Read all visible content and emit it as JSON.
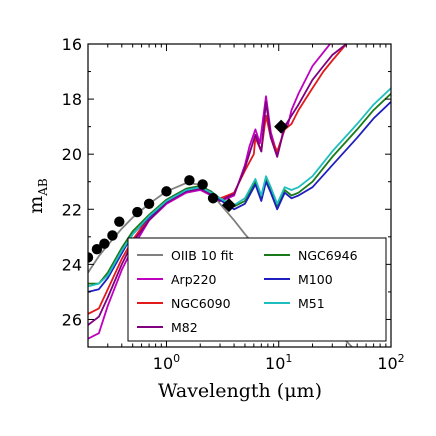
{
  "chart_data": {
    "type": "line",
    "xlabel": "Wavelength (μm)",
    "ylabel_main": "m",
    "ylabel_sub": "AB",
    "x_scale": "log",
    "xlim": [
      0.2,
      100
    ],
    "ylim": [
      27,
      16
    ],
    "y_inverted": true,
    "grid": false,
    "legend_placement": "lower-right",
    "x_ticks": [
      {
        "value": 1,
        "base": "10",
        "exp": "0"
      },
      {
        "value": 10,
        "base": "10",
        "exp": "1"
      },
      {
        "value": 100,
        "base": "10",
        "exp": "2"
      }
    ],
    "y_ticks": [
      16,
      18,
      20,
      22,
      24,
      26
    ],
    "colors": {
      "OIIB 10 fit": "#808080",
      "Arp220": "#bf00bf",
      "NGC6090": "#e31a1c",
      "M82": "#800080",
      "NGC6946": "#1a7a1a",
      "M100": "#1f1fbf",
      "M51": "#1fbfbf",
      "points": "#000000"
    },
    "legend_order": [
      "OIIB 10 fit",
      "NGC6946",
      "Arp220",
      "M100",
      "NGC6090",
      "M51",
      "M82"
    ],
    "series": [
      {
        "name": "OIIB 10 fit",
        "points": [
          [
            0.2,
            24.3
          ],
          [
            0.25,
            23.7
          ],
          [
            0.3,
            23.3
          ],
          [
            0.4,
            22.7
          ],
          [
            0.5,
            22.3
          ],
          [
            0.7,
            21.8
          ],
          [
            1.0,
            21.35
          ],
          [
            1.5,
            21.05
          ],
          [
            2.0,
            21.1
          ],
          [
            2.5,
            21.4
          ],
          [
            3.0,
            21.8
          ],
          [
            4.0,
            22.4
          ],
          [
            5.0,
            22.9
          ],
          [
            7.0,
            23.6
          ],
          [
            10,
            24.3
          ],
          [
            15,
            25.0
          ],
          [
            20,
            25.6
          ],
          [
            30,
            26.3
          ],
          [
            45,
            27.0
          ]
        ]
      },
      {
        "name": "Arp220",
        "points": [
          [
            0.2,
            26.7
          ],
          [
            0.25,
            26.5
          ],
          [
            0.3,
            25.5
          ],
          [
            0.4,
            24.2
          ],
          [
            0.5,
            23.4
          ],
          [
            0.7,
            22.4
          ],
          [
            1.0,
            21.8
          ],
          [
            1.5,
            21.4
          ],
          [
            2.0,
            21.3
          ],
          [
            2.5,
            21.5
          ],
          [
            3.0,
            21.7
          ],
          [
            3.5,
            21.6
          ],
          [
            4.0,
            21.5
          ],
          [
            5.0,
            20.4
          ],
          [
            5.5,
            19.7
          ],
          [
            6.2,
            19.1
          ],
          [
            6.8,
            19.6
          ],
          [
            7.7,
            17.9
          ],
          [
            8.5,
            19.2
          ],
          [
            9.7,
            20.0
          ],
          [
            10.5,
            19.5
          ],
          [
            11.3,
            18.9
          ],
          [
            12,
            19.0
          ],
          [
            13,
            18.4
          ],
          [
            15,
            17.8
          ],
          [
            20,
            16.8
          ],
          [
            25,
            16.3
          ],
          [
            30,
            15.9
          ]
        ]
      },
      {
        "name": "NGC6090",
        "points": [
          [
            0.2,
            25.8
          ],
          [
            0.25,
            25.6
          ],
          [
            0.3,
            24.9
          ],
          [
            0.4,
            23.8
          ],
          [
            0.5,
            23.1
          ],
          [
            0.7,
            22.3
          ],
          [
            1.0,
            21.7
          ],
          [
            1.5,
            21.3
          ],
          [
            2.0,
            21.2
          ],
          [
            2.5,
            21.4
          ],
          [
            3.0,
            21.6
          ],
          [
            3.5,
            21.5
          ],
          [
            4.0,
            21.4
          ],
          [
            5.0,
            20.6
          ],
          [
            6.0,
            20.0
          ],
          [
            6.2,
            19.4
          ],
          [
            7.0,
            19.9
          ],
          [
            7.7,
            18.6
          ],
          [
            8.5,
            19.4
          ],
          [
            9.7,
            19.9
          ],
          [
            11.3,
            19.1
          ],
          [
            13,
            18.9
          ],
          [
            15,
            18.4
          ],
          [
            20,
            17.6
          ],
          [
            25,
            17.0
          ],
          [
            30,
            16.6
          ],
          [
            40,
            16.0
          ]
        ]
      },
      {
        "name": "M82",
        "points": [
          [
            0.2,
            26.2
          ],
          [
            0.25,
            25.9
          ],
          [
            0.3,
            25.2
          ],
          [
            0.4,
            24.0
          ],
          [
            0.5,
            23.2
          ],
          [
            0.7,
            22.4
          ],
          [
            1.0,
            21.75
          ],
          [
            1.5,
            21.35
          ],
          [
            2.0,
            21.25
          ],
          [
            2.5,
            21.45
          ],
          [
            3.0,
            21.7
          ],
          [
            3.5,
            21.55
          ],
          [
            4.0,
            21.45
          ],
          [
            5.0,
            20.5
          ],
          [
            6.2,
            19.3
          ],
          [
            7.0,
            19.9
          ],
          [
            7.7,
            18.1
          ],
          [
            8.5,
            19.4
          ],
          [
            9.7,
            20.1
          ],
          [
            11.3,
            19.0
          ],
          [
            13,
            18.6
          ],
          [
            15,
            18.2
          ],
          [
            20,
            17.3
          ],
          [
            25,
            16.8
          ],
          [
            30,
            16.4
          ],
          [
            40,
            16.0
          ]
        ]
      },
      {
        "name": "NGC6946",
        "points": [
          [
            0.2,
            24.7
          ],
          [
            0.25,
            24.7
          ],
          [
            0.3,
            24.3
          ],
          [
            0.4,
            23.4
          ],
          [
            0.5,
            22.8
          ],
          [
            0.7,
            22.2
          ],
          [
            1.0,
            21.65
          ],
          [
            1.5,
            21.25
          ],
          [
            2.0,
            21.15
          ],
          [
            2.5,
            21.35
          ],
          [
            3.0,
            21.6
          ],
          [
            3.5,
            21.75
          ],
          [
            4.0,
            21.9
          ],
          [
            5.0,
            21.7
          ],
          [
            6.2,
            21.0
          ],
          [
            7.0,
            21.6
          ],
          [
            7.7,
            20.9
          ],
          [
            8.5,
            21.3
          ],
          [
            9.7,
            21.9
          ],
          [
            11.3,
            21.3
          ],
          [
            13,
            21.5
          ],
          [
            15,
            21.4
          ],
          [
            20,
            21.0
          ],
          [
            30,
            20.1
          ],
          [
            50,
            19.1
          ],
          [
            70,
            18.4
          ],
          [
            100,
            17.8
          ]
        ]
      },
      {
        "name": "M100",
        "points": [
          [
            0.2,
            25.0
          ],
          [
            0.25,
            24.9
          ],
          [
            0.3,
            24.5
          ],
          [
            0.4,
            23.6
          ],
          [
            0.5,
            22.9
          ],
          [
            0.7,
            22.3
          ],
          [
            1.0,
            21.7
          ],
          [
            1.5,
            21.3
          ],
          [
            2.0,
            21.2
          ],
          [
            2.5,
            21.4
          ],
          [
            3.0,
            21.65
          ],
          [
            3.5,
            21.85
          ],
          [
            4.0,
            22.0
          ],
          [
            5.0,
            21.8
          ],
          [
            6.2,
            21.1
          ],
          [
            7.0,
            21.7
          ],
          [
            7.7,
            21.0
          ],
          [
            8.5,
            21.4
          ],
          [
            9.7,
            22.0
          ],
          [
            11.3,
            21.4
          ],
          [
            13,
            21.6
          ],
          [
            15,
            21.5
          ],
          [
            20,
            21.2
          ],
          [
            30,
            20.4
          ],
          [
            50,
            19.4
          ],
          [
            70,
            18.7
          ],
          [
            100,
            18.1
          ]
        ]
      },
      {
        "name": "M51",
        "points": [
          [
            0.2,
            24.8
          ],
          [
            0.25,
            24.7
          ],
          [
            0.3,
            24.4
          ],
          [
            0.4,
            23.5
          ],
          [
            0.5,
            22.9
          ],
          [
            0.7,
            22.25
          ],
          [
            1.0,
            21.7
          ],
          [
            1.5,
            21.3
          ],
          [
            2.0,
            21.2
          ],
          [
            2.5,
            21.4
          ],
          [
            3.0,
            21.6
          ],
          [
            3.5,
            21.75
          ],
          [
            4.0,
            21.85
          ],
          [
            5.0,
            21.6
          ],
          [
            6.2,
            20.9
          ],
          [
            7.0,
            21.5
          ],
          [
            7.7,
            20.8
          ],
          [
            8.5,
            21.2
          ],
          [
            9.7,
            21.8
          ],
          [
            11.3,
            21.2
          ],
          [
            13,
            21.3
          ],
          [
            15,
            21.2
          ],
          [
            20,
            20.8
          ],
          [
            30,
            19.9
          ],
          [
            50,
            18.9
          ],
          [
            70,
            18.2
          ],
          [
            100,
            17.6
          ]
        ]
      }
    ],
    "data_points": [
      {
        "x": 0.2,
        "y": 23.75,
        "marker": "circle"
      },
      {
        "x": 0.24,
        "y": 23.45,
        "marker": "circle"
      },
      {
        "x": 0.28,
        "y": 23.25,
        "marker": "circle"
      },
      {
        "x": 0.33,
        "y": 22.95,
        "marker": "circle"
      },
      {
        "x": 0.38,
        "y": 22.45,
        "marker": "circle"
      },
      {
        "x": 0.55,
        "y": 22.1,
        "marker": "circle"
      },
      {
        "x": 0.7,
        "y": 21.8,
        "marker": "circle"
      },
      {
        "x": 1.0,
        "y": 21.35,
        "marker": "circle"
      },
      {
        "x": 1.6,
        "y": 20.95,
        "marker": "circle"
      },
      {
        "x": 2.1,
        "y": 21.1,
        "marker": "circle"
      },
      {
        "x": 2.6,
        "y": 21.6,
        "marker": "circle"
      },
      {
        "x": 3.6,
        "y": 21.85,
        "marker": "diamond"
      },
      {
        "x": 10.5,
        "y": 19.0,
        "marker": "diamond"
      }
    ]
  }
}
